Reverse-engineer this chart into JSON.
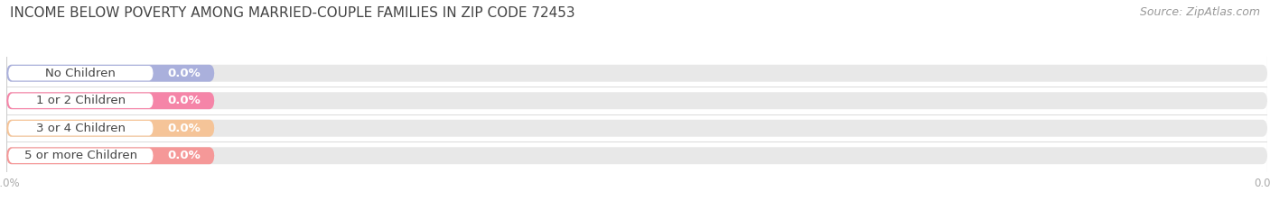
{
  "title": "INCOME BELOW POVERTY AMONG MARRIED-COUPLE FAMILIES IN ZIP CODE 72453",
  "source": "Source: ZipAtlas.com",
  "categories": [
    "No Children",
    "1 or 2 Children",
    "3 or 4 Children",
    "5 or more Children"
  ],
  "values": [
    0.0,
    0.0,
    0.0,
    0.0
  ],
  "bar_colors": [
    "#aab0dc",
    "#f585a8",
    "#f5c498",
    "#f59898"
  ],
  "bar_bg_color": "#e8e8e8",
  "white_label_bg": "#ffffff",
  "bar_label_color": "#ffffff",
  "label_text_color": "#444444",
  "title_color": "#444444",
  "source_color": "#999999",
  "background_color": "#ffffff",
  "title_fontsize": 11,
  "source_fontsize": 9,
  "label_fontsize": 9.5,
  "value_fontsize": 9.5,
  "tick_fontsize": 8.5,
  "tick_color": "#aaaaaa",
  "grid_color": "#cccccc"
}
